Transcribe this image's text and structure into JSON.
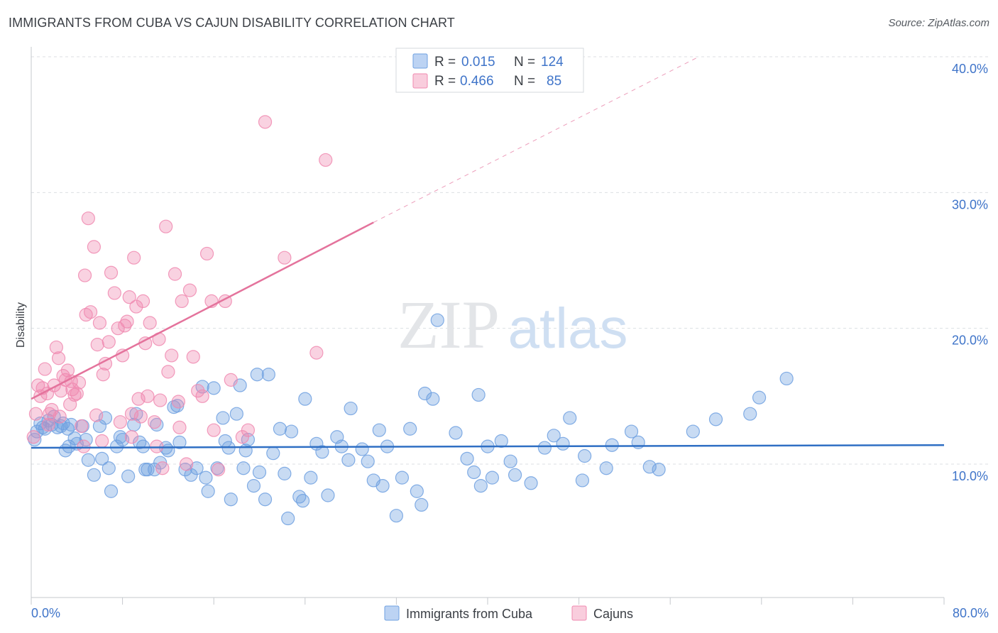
{
  "header": {
    "title": "IMMIGRANTS FROM CUBA VS CAJUN DISABILITY CORRELATION CHART",
    "source": "Source: ZipAtlas.com"
  },
  "watermark": {
    "zip": "ZIP",
    "atlas": "atlas"
  },
  "legend_top": {
    "rows": [
      {
        "r_label": "R =",
        "r_value": "0.015",
        "n_label": "N =",
        "n_value": "124",
        "color": "#6fa0e0"
      },
      {
        "r_label": "R =",
        "r_value": "0.466",
        "n_label": "N =",
        "n_value": "85",
        "color": "#f08ab0"
      }
    ]
  },
  "legend_bottom": {
    "items": [
      {
        "label": "Immigrants from Cuba",
        "color": "#6fa0e0"
      },
      {
        "label": "Cajuns",
        "color": "#f08ab0"
      }
    ]
  },
  "chart_data": {
    "type": "scatter",
    "ylabel": "Disability",
    "x_ticks": [
      "0.0%",
      "80.0%"
    ],
    "y_ticks": [
      "10.0%",
      "20.0%",
      "30.0%",
      "40.0%"
    ],
    "xlim": [
      0,
      80
    ],
    "ylim": [
      0,
      41
    ],
    "colors": {
      "cuba": "#6fa0e0",
      "cajun": "#f08ab0",
      "cuba_line": "#2f6fc4",
      "cajun_line": "#e4739c"
    },
    "series": [
      {
        "name": "Immigrants from Cuba",
        "trend": {
          "x0": 0,
          "y0": 11.2,
          "x1": 80,
          "y1": 11.4
        },
        "points": [
          [
            0.3,
            11.8
          ],
          [
            0.5,
            12.4
          ],
          [
            0.8,
            13.0
          ],
          [
            1.2,
            12.6
          ],
          [
            1.5,
            13.2
          ],
          [
            1.8,
            12.9
          ],
          [
            2.0,
            13.5
          ],
          [
            2.3,
            12.7
          ],
          [
            2.6,
            12.8
          ],
          [
            3.0,
            11.0
          ],
          [
            3.3,
            11.3
          ],
          [
            3.5,
            12.9
          ],
          [
            3.8,
            11.9
          ],
          [
            4.0,
            11.5
          ],
          [
            4.5,
            12.8
          ],
          [
            5.0,
            10.3
          ],
          [
            5.5,
            9.2
          ],
          [
            6.0,
            12.8
          ],
          [
            6.2,
            10.4
          ],
          [
            6.5,
            13.4
          ],
          [
            7.0,
            8.0
          ],
          [
            7.5,
            11.3
          ],
          [
            7.8,
            12.0
          ],
          [
            8.0,
            11.8
          ],
          [
            8.5,
            9.1
          ],
          [
            9.0,
            12.9
          ],
          [
            9.2,
            13.7
          ],
          [
            9.5,
            11.6
          ],
          [
            10.0,
            9.6
          ],
          [
            10.2,
            9.6
          ],
          [
            10.8,
            9.6
          ],
          [
            11.0,
            12.9
          ],
          [
            11.3,
            10.1
          ],
          [
            11.8,
            11.2
          ],
          [
            12.0,
            11.0
          ],
          [
            12.5,
            14.2
          ],
          [
            12.8,
            14.3
          ],
          [
            13.0,
            11.6
          ],
          [
            13.5,
            9.6
          ],
          [
            14.0,
            9.2
          ],
          [
            14.5,
            9.7
          ],
          [
            15.0,
            15.7
          ],
          [
            15.3,
            9.0
          ],
          [
            15.5,
            8.0
          ],
          [
            16.0,
            15.6
          ],
          [
            16.3,
            9.7
          ],
          [
            16.8,
            13.4
          ],
          [
            17.0,
            11.7
          ],
          [
            17.3,
            11.2
          ],
          [
            17.5,
            7.4
          ],
          [
            18.0,
            13.7
          ],
          [
            18.3,
            15.8
          ],
          [
            18.6,
            9.7
          ],
          [
            18.8,
            11.0
          ],
          [
            19.0,
            11.8
          ],
          [
            19.5,
            8.4
          ],
          [
            19.8,
            16.6
          ],
          [
            20.0,
            9.4
          ],
          [
            20.5,
            7.4
          ],
          [
            20.8,
            16.6
          ],
          [
            21.2,
            10.8
          ],
          [
            21.8,
            12.6
          ],
          [
            22.2,
            9.3
          ],
          [
            22.5,
            6.0
          ],
          [
            22.8,
            12.4
          ],
          [
            23.5,
            7.6
          ],
          [
            23.8,
            7.3
          ],
          [
            24.0,
            14.8
          ],
          [
            24.5,
            9.0
          ],
          [
            25.0,
            11.5
          ],
          [
            25.5,
            10.9
          ],
          [
            26.0,
            7.7
          ],
          [
            26.8,
            12.0
          ],
          [
            27.2,
            11.3
          ],
          [
            27.8,
            10.3
          ],
          [
            28.0,
            14.1
          ],
          [
            29.0,
            11.1
          ],
          [
            29.5,
            10.2
          ],
          [
            30.0,
            8.8
          ],
          [
            30.5,
            12.5
          ],
          [
            30.8,
            8.4
          ],
          [
            31.2,
            11.3
          ],
          [
            32.0,
            6.2
          ],
          [
            32.5,
            9.0
          ],
          [
            33.2,
            12.6
          ],
          [
            33.8,
            8.0
          ],
          [
            34.2,
            7.0
          ],
          [
            34.5,
            15.2
          ],
          [
            35.2,
            14.8
          ],
          [
            35.6,
            20.6
          ],
          [
            37.2,
            12.3
          ],
          [
            38.2,
            10.4
          ],
          [
            38.8,
            9.4
          ],
          [
            39.2,
            15.1
          ],
          [
            39.4,
            8.4
          ],
          [
            40.0,
            11.3
          ],
          [
            40.4,
            9.0
          ],
          [
            41.2,
            11.7
          ],
          [
            42.0,
            10.2
          ],
          [
            42.4,
            9.2
          ],
          [
            43.8,
            8.6
          ],
          [
            45.0,
            11.2
          ],
          [
            45.8,
            12.1
          ],
          [
            46.6,
            11.5
          ],
          [
            47.2,
            13.4
          ],
          [
            48.3,
            8.8
          ],
          [
            48.5,
            10.6
          ],
          [
            50.4,
            9.7
          ],
          [
            50.9,
            11.4
          ],
          [
            52.6,
            12.4
          ],
          [
            53.2,
            11.6
          ],
          [
            54.2,
            9.8
          ],
          [
            55.0,
            9.6
          ],
          [
            58.0,
            12.4
          ],
          [
            60.0,
            13.3
          ],
          [
            63.0,
            13.7
          ],
          [
            63.8,
            14.9
          ],
          [
            66.2,
            16.3
          ],
          [
            1.0,
            12.7
          ],
          [
            2.8,
            13.0
          ],
          [
            3.2,
            12.6
          ],
          [
            4.8,
            11.8
          ],
          [
            6.8,
            9.7
          ],
          [
            9.8,
            11.3
          ]
        ]
      },
      {
        "name": "Cajuns",
        "trend": {
          "x0": 0,
          "y0": 14.8,
          "x1": 30,
          "y1": 27.8,
          "dash_x1": 58.5,
          "dash_y1": 40.0
        },
        "points": [
          [
            0.2,
            12.0
          ],
          [
            0.4,
            13.7
          ],
          [
            0.6,
            15.8
          ],
          [
            0.8,
            15.0
          ],
          [
            1.0,
            15.6
          ],
          [
            1.2,
            17.0
          ],
          [
            1.4,
            15.2
          ],
          [
            1.6,
            13.7
          ],
          [
            1.8,
            14.0
          ],
          [
            2.0,
            15.8
          ],
          [
            2.2,
            18.6
          ],
          [
            2.4,
            17.8
          ],
          [
            2.6,
            15.4
          ],
          [
            2.8,
            16.5
          ],
          [
            3.0,
            16.2
          ],
          [
            3.2,
            16.9
          ],
          [
            3.4,
            14.4
          ],
          [
            3.6,
            15.5
          ],
          [
            3.8,
            15.1
          ],
          [
            4.0,
            15.2
          ],
          [
            4.2,
            16.0
          ],
          [
            4.4,
            12.8
          ],
          [
            4.6,
            11.3
          ],
          [
            4.7,
            23.9
          ],
          [
            4.8,
            21.0
          ],
          [
            5.0,
            28.1
          ],
          [
            5.2,
            21.2
          ],
          [
            5.5,
            26.0
          ],
          [
            5.8,
            18.8
          ],
          [
            6.0,
            20.4
          ],
          [
            6.3,
            16.6
          ],
          [
            6.5,
            17.4
          ],
          [
            6.8,
            19.0
          ],
          [
            7.0,
            24.1
          ],
          [
            7.3,
            22.6
          ],
          [
            7.6,
            20.0
          ],
          [
            8.0,
            18.0
          ],
          [
            8.2,
            20.2
          ],
          [
            8.4,
            20.5
          ],
          [
            8.6,
            22.3
          ],
          [
            8.8,
            13.7
          ],
          [
            9.0,
            25.2
          ],
          [
            9.2,
            21.6
          ],
          [
            9.4,
            14.8
          ],
          [
            9.8,
            22.0
          ],
          [
            10.0,
            18.9
          ],
          [
            10.2,
            15.0
          ],
          [
            10.4,
            20.4
          ],
          [
            10.8,
            13.1
          ],
          [
            11.0,
            11.3
          ],
          [
            11.2,
            19.2
          ],
          [
            11.5,
            9.7
          ],
          [
            11.8,
            27.5
          ],
          [
            12.0,
            16.8
          ],
          [
            12.3,
            18.0
          ],
          [
            12.6,
            24.0
          ],
          [
            12.9,
            14.6
          ],
          [
            13.2,
            22.0
          ],
          [
            13.6,
            10.0
          ],
          [
            13.9,
            22.8
          ],
          [
            14.2,
            17.9
          ],
          [
            14.6,
            15.4
          ],
          [
            15.0,
            15.0
          ],
          [
            15.4,
            25.5
          ],
          [
            15.8,
            22.0
          ],
          [
            16.0,
            12.5
          ],
          [
            16.4,
            9.6
          ],
          [
            17.0,
            22.0
          ],
          [
            17.5,
            16.2
          ],
          [
            18.5,
            12.0
          ],
          [
            19.0,
            12.5
          ],
          [
            20.5,
            35.2
          ],
          [
            22.2,
            25.2
          ],
          [
            25.0,
            18.2
          ],
          [
            25.8,
            32.4
          ],
          [
            1.5,
            12.9
          ],
          [
            2.5,
            13.5
          ],
          [
            3.5,
            16.1
          ],
          [
            5.7,
            13.6
          ],
          [
            6.2,
            11.7
          ],
          [
            7.8,
            13.1
          ],
          [
            8.8,
            12.0
          ],
          [
            9.6,
            13.5
          ],
          [
            11.3,
            14.7
          ],
          [
            13.0,
            12.7
          ]
        ]
      }
    ]
  }
}
